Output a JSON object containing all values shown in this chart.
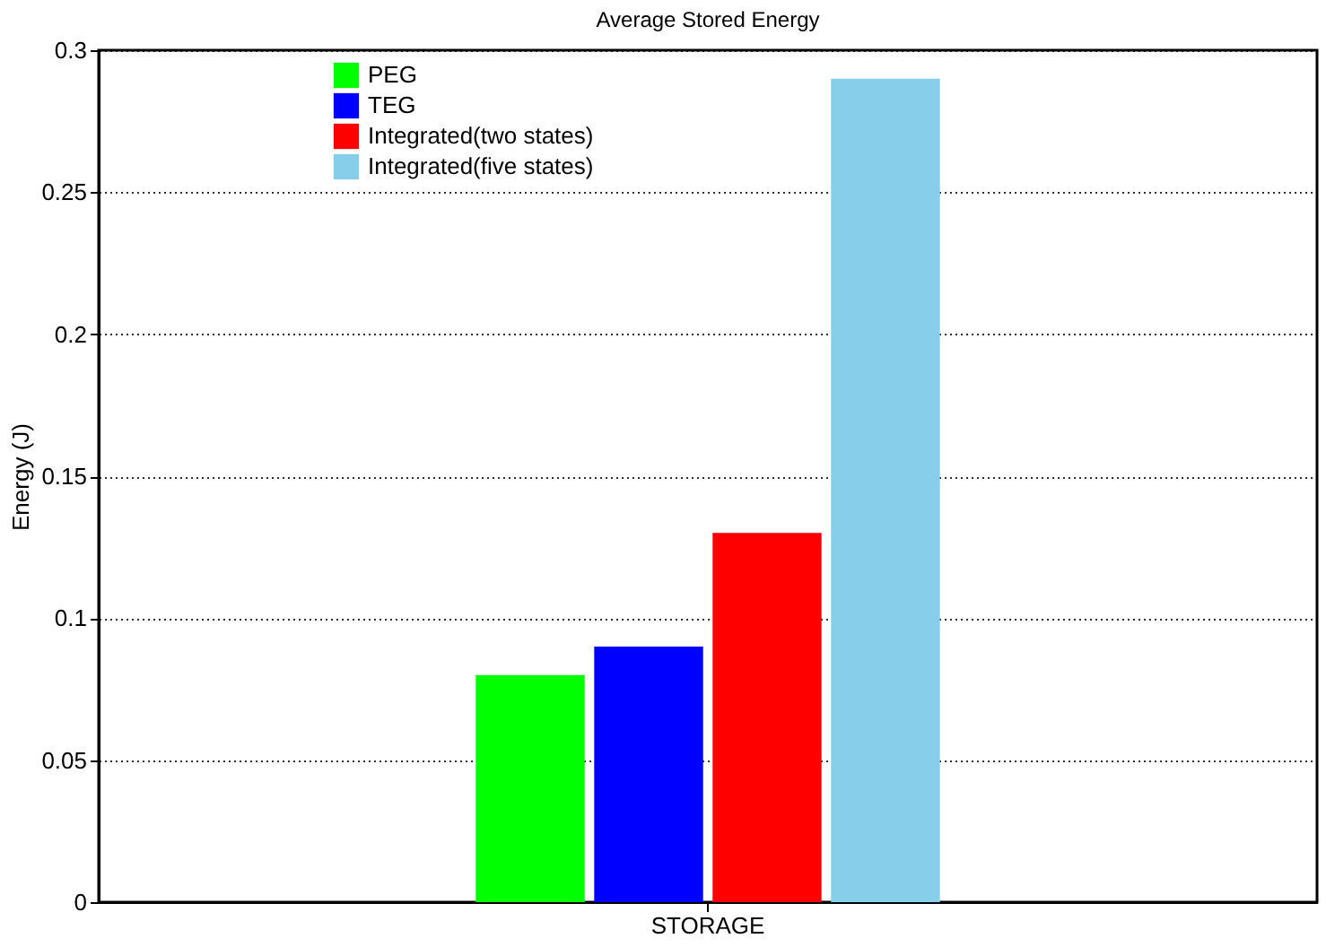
{
  "chart_data": {
    "type": "bar",
    "title": "Average Stored Energy",
    "ylabel": "Energy (J)",
    "categories": [
      "STORAGE"
    ],
    "series": [
      {
        "name": "PEG",
        "color": "#00ff00",
        "values": [
          0.08
        ]
      },
      {
        "name": "TEG",
        "color": "#0000ff",
        "values": [
          0.09
        ]
      },
      {
        "name": "Integrated(two states)",
        "color": "#ff0000",
        "values": [
          0.13
        ]
      },
      {
        "name": "Integrated(five states)",
        "color": "#87ceeb",
        "values": [
          0.29
        ]
      }
    ],
    "ylim": [
      0,
      0.3
    ],
    "yticks": [
      0,
      0.05,
      0.1,
      0.15,
      0.2,
      0.25,
      0.3
    ],
    "grid": "y",
    "legend": "top left"
  }
}
